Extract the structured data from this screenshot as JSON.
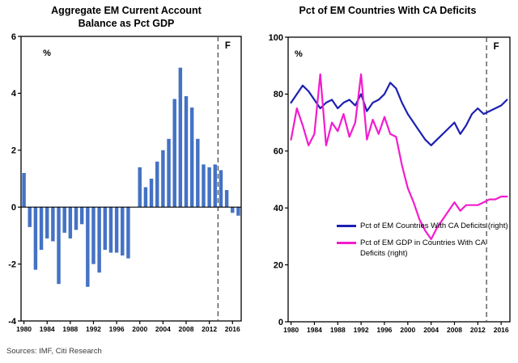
{
  "sources": "Sources: IMF, Citi Research",
  "colors": {
    "bar": "#4472C4",
    "blue_line": "#1C20B2",
    "magenta_line": "#F31BCE",
    "axis": "#000000",
    "dashed": "#4d4d4d"
  },
  "chart_data": [
    {
      "type": "bar",
      "title_lines": [
        "Aggregate EM Current Account",
        "Balance as Pct GDP"
      ],
      "unit_label": "%",
      "forecast_label": "F",
      "ylim": [
        -4,
        6
      ],
      "yticks": [
        6,
        4,
        2,
        0,
        -2,
        -4
      ],
      "xticks": [
        1980,
        1984,
        1988,
        1992,
        1996,
        2000,
        2004,
        2008,
        2012,
        2016
      ],
      "forecast_boundary_year": 2013.5,
      "categories": [
        1980,
        1981,
        1982,
        1983,
        1984,
        1985,
        1986,
        1987,
        1988,
        1989,
        1990,
        1991,
        1992,
        1993,
        1994,
        1995,
        1996,
        1997,
        1998,
        1999,
        2000,
        2001,
        2002,
        2003,
        2004,
        2005,
        2006,
        2007,
        2008,
        2009,
        2010,
        2011,
        2012,
        2013,
        2014,
        2015,
        2016,
        2017
      ],
      "values": [
        1.2,
        -0.7,
        -2.2,
        -1.5,
        -1.1,
        -1.2,
        -2.7,
        -0.9,
        -1.1,
        -0.8,
        -0.6,
        -2.8,
        -2.0,
        -2.3,
        -1.5,
        -1.6,
        -1.6,
        -1.7,
        -1.8,
        0.0,
        1.4,
        0.7,
        1.0,
        1.6,
        2.0,
        2.4,
        3.8,
        4.9,
        3.9,
        3.5,
        2.4,
        1.5,
        1.4,
        1.5,
        1.3,
        0.6,
        -0.2,
        -0.3
      ]
    },
    {
      "type": "line",
      "title": "Pct of EM Countries With CA Deficits",
      "unit_label": "%",
      "forecast_label": "F",
      "ylim": [
        0,
        100
      ],
      "yticks": [
        100,
        80,
        60,
        40,
        20,
        0
      ],
      "xticks": [
        1980,
        1984,
        1988,
        1992,
        1996,
        2000,
        2004,
        2008,
        2012,
        2016
      ],
      "forecast_boundary_year": 2013.5,
      "categories": [
        1980,
        1981,
        1982,
        1983,
        1984,
        1985,
        1986,
        1987,
        1988,
        1989,
        1990,
        1991,
        1992,
        1993,
        1994,
        1995,
        1996,
        1997,
        1998,
        1999,
        2000,
        2001,
        2002,
        2003,
        2004,
        2005,
        2006,
        2007,
        2008,
        2009,
        2010,
        2011,
        2012,
        2013,
        2014,
        2015,
        2016,
        2017
      ],
      "series": [
        {
          "name": "Pct of EM Countries With CA Deficits (right)",
          "color_key": "blue_line",
          "values": [
            77,
            80,
            83,
            81,
            78,
            75,
            77,
            78,
            75,
            77,
            78,
            76,
            80,
            74,
            77,
            78,
            80,
            84,
            82,
            77,
            73,
            70,
            67,
            64,
            62,
            64,
            66,
            68,
            70,
            66,
            69,
            73,
            75,
            73,
            74,
            75,
            76,
            78
          ]
        },
        {
          "name": "Pct of EM GDP in Countries With CA Deficits (right)",
          "color_key": "magenta_line",
          "values": [
            64,
            75,
            69,
            62,
            66,
            87,
            62,
            70,
            67,
            73,
            65,
            70,
            87,
            64,
            71,
            66,
            72,
            66,
            65,
            55,
            47,
            42,
            36,
            32,
            29,
            33,
            36,
            39,
            42,
            39,
            41,
            41,
            41,
            42,
            43,
            43,
            44,
            44
          ]
        }
      ],
      "legend_position": "inside-right"
    }
  ]
}
